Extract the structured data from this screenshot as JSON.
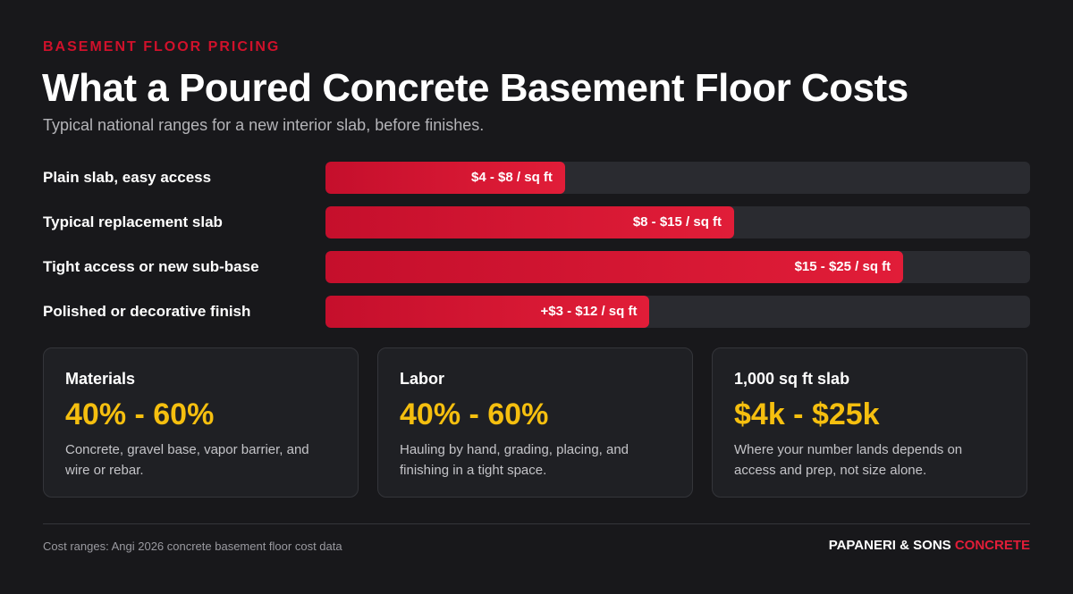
{
  "header": {
    "eyebrow": "BASEMENT FLOOR PRICING",
    "title": "What a Poured Concrete Basement Floor Costs",
    "subtitle": "Typical national ranges for a new interior slab, before finishes."
  },
  "bars": [
    {
      "label": "Plain slab, easy access",
      "range": "$4 - $8 / sq ft",
      "fill": 34
    },
    {
      "label": "Typical replacement slab",
      "range": "$8 - $15 / sq ft",
      "fill": 58
    },
    {
      "label": "Tight access or new sub-base",
      "range": "$15 - $25 / sq ft",
      "fill": 82
    },
    {
      "label": "Polished or decorative finish",
      "range": "+$3 - $12 / sq ft",
      "fill": 46
    }
  ],
  "bar_scale": [
    0,
    100
  ],
  "cards": [
    {
      "heading": "Materials",
      "value": "40% - 60%",
      "description": "Concrete, gravel base, vapor barrier, and wire or rebar."
    },
    {
      "heading": "Labor",
      "value": "40% - 60%",
      "description": "Hauling by hand, grading, placing, and finishing in a tight space."
    },
    {
      "heading": "1,000 sq ft slab",
      "value": "$4k - $25k",
      "description": "Where your number lands depends on access and prep, not size alone."
    }
  ],
  "footer": {
    "source": "Cost ranges: Angi 2026 concrete basement floor cost data",
    "brand": "PAPANERI & SONS",
    "brand_accent": "CONCRETE"
  }
}
